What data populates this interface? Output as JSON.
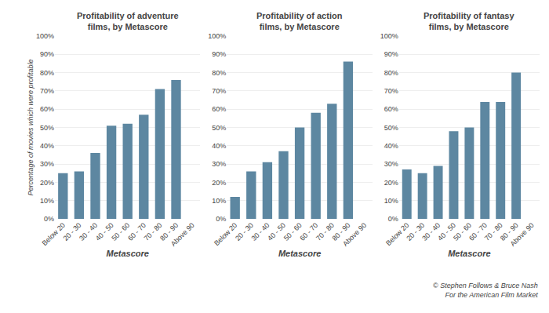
{
  "chart_data": [
    {
      "type": "bar",
      "title": "Profitability of adventure\nfilms, by Metascore",
      "xlabel": "Metascore",
      "ylabel": "Percentage of movies which were profitable",
      "categories": [
        "Below 20",
        "20 - 30",
        "30 - 40",
        "40 - 50",
        "50 - 60",
        "60 - 70",
        "70 - 80",
        "80 - 90",
        "Above 90"
      ],
      "values": [
        25,
        26,
        36,
        51,
        52,
        57,
        71,
        76,
        null
      ],
      "color": "#5d87a1",
      "ylim": [
        0,
        100
      ],
      "yticks": [
        {
          "value": 0,
          "label": "0%"
        },
        {
          "value": 10,
          "label": "10%"
        },
        {
          "value": 20,
          "label": "20%"
        },
        {
          "value": 30,
          "label": "30%"
        },
        {
          "value": 40,
          "label": "40%"
        },
        {
          "value": 50,
          "label": "50%"
        },
        {
          "value": 60,
          "label": "60%"
        },
        {
          "value": 70,
          "label": "70%"
        },
        {
          "value": 80,
          "label": "80%"
        },
        {
          "value": 90,
          "label": "90%"
        },
        {
          "value": 100,
          "label": "100%"
        }
      ],
      "grid": true
    },
    {
      "type": "bar",
      "title": "Profitability of action\nfilms, by Metascore",
      "xlabel": "Metascore",
      "categories": [
        "Below 20",
        "20 - 30",
        "30 - 40",
        "40 - 50",
        "50 - 60",
        "60 - 70",
        "70 - 80",
        "80 - 90",
        "Above 90"
      ],
      "values": [
        12,
        26,
        31,
        37,
        50,
        58,
        63,
        86,
        null
      ],
      "color": "#5d87a1",
      "ylim": [
        0,
        100
      ],
      "yticks": [
        {
          "value": 0,
          "label": "0%"
        },
        {
          "value": 10,
          "label": "10%"
        },
        {
          "value": 20,
          "label": "20%"
        },
        {
          "value": 30,
          "label": "30%"
        },
        {
          "value": 40,
          "label": "40%"
        },
        {
          "value": 50,
          "label": "50%"
        },
        {
          "value": 60,
          "label": "60%"
        },
        {
          "value": 70,
          "label": "70%"
        },
        {
          "value": 80,
          "label": "80%"
        },
        {
          "value": 90,
          "label": "90%"
        },
        {
          "value": 100,
          "label": "100%"
        }
      ],
      "grid": true
    },
    {
      "type": "bar",
      "title": "Profitability of fantasy\nfilms, by Metascore",
      "xlabel": "Metascore",
      "categories": [
        "Below 20",
        "20 - 30",
        "30 - 40",
        "40 - 50",
        "50 - 60",
        "60 - 70",
        "70 - 80",
        "80 - 90",
        "Above 90"
      ],
      "values": [
        27,
        25,
        29,
        48,
        50,
        64,
        64,
        80,
        null
      ],
      "color": "#5d87a1",
      "ylim": [
        0,
        100
      ],
      "yticks": [
        {
          "value": 0,
          "label": "0%"
        },
        {
          "value": 10,
          "label": "10%"
        },
        {
          "value": 20,
          "label": "20%"
        },
        {
          "value": 30,
          "label": "30%"
        },
        {
          "value": 40,
          "label": "40%"
        },
        {
          "value": 50,
          "label": "50%"
        },
        {
          "value": 60,
          "label": "60%"
        },
        {
          "value": 70,
          "label": "70%"
        },
        {
          "value": 80,
          "label": "80%"
        },
        {
          "value": 90,
          "label": "90%"
        },
        {
          "value": 100,
          "label": "100%"
        }
      ],
      "grid": true,
      "annotations": [
        "© Stephen Follows & Bruce Nash",
        "For the American Film Market"
      ]
    }
  ]
}
